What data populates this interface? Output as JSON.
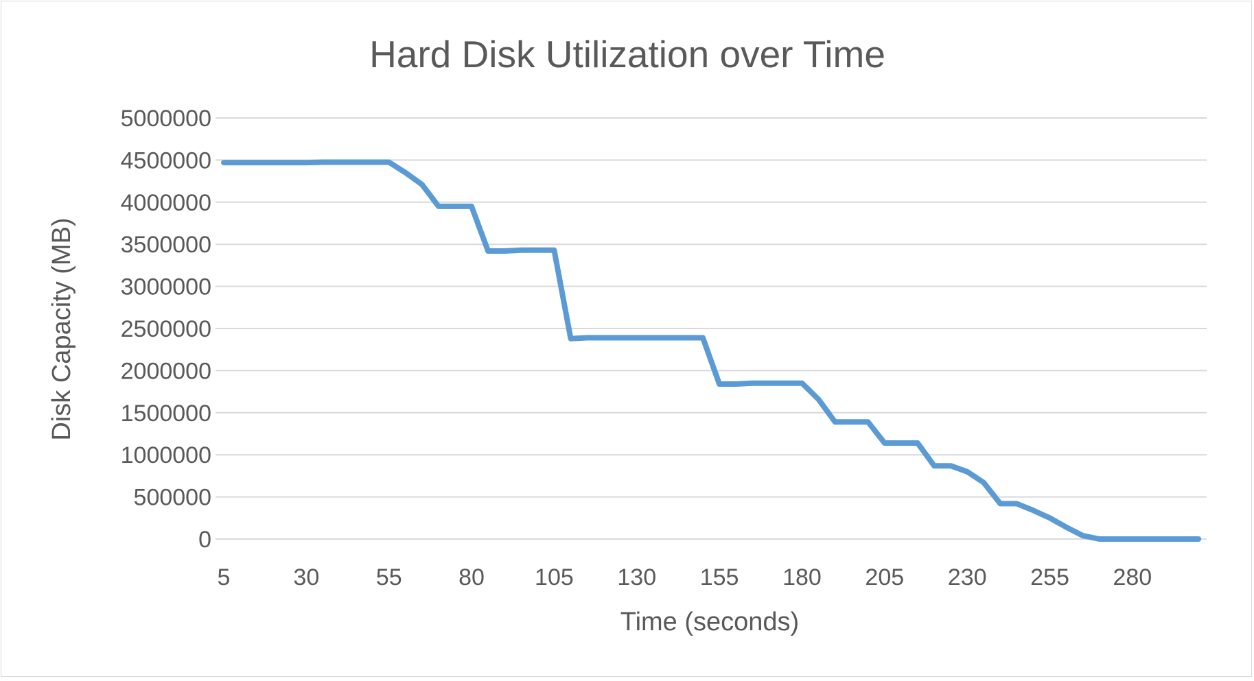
{
  "chart_data": {
    "type": "line",
    "title": "Hard Disk Utilization over Time",
    "xlabel": "Time (seconds)",
    "ylabel": "Disk Capacity (MB)",
    "x_tick_labels": [
      "5",
      "30",
      "55",
      "80",
      "105",
      "130",
      "155",
      "180",
      "205",
      "230",
      "255",
      "280"
    ],
    "y_tick_labels": [
      "0",
      "500000",
      "1000000",
      "1500000",
      "2000000",
      "2500000",
      "3000000",
      "3500000",
      "4000000",
      "4500000",
      "5000000"
    ],
    "ylim": [
      0,
      5000000
    ],
    "xlim": [
      5,
      300
    ],
    "grid": "horizontal",
    "legend": "none",
    "series_color": "#5B9BD5",
    "series": [
      {
        "x": [
          5,
          10,
          15,
          20,
          25,
          30,
          35,
          40,
          45,
          50,
          55,
          60,
          65,
          70,
          75,
          80,
          85,
          90,
          95,
          100,
          105,
          110,
          115,
          120,
          125,
          130,
          135,
          140,
          145,
          150,
          155,
          160,
          165,
          170,
          175,
          180,
          185,
          190,
          195,
          200,
          205,
          210,
          215,
          220,
          225,
          230,
          235,
          240,
          245,
          250,
          255,
          260,
          265,
          270,
          275,
          280,
          285,
          290,
          295,
          300
        ],
        "values": [
          4470000,
          4470000,
          4470000,
          4470000,
          4470000,
          4470000,
          4475000,
          4475000,
          4475000,
          4475000,
          4475000,
          4350000,
          4210000,
          3950000,
          3950000,
          3950000,
          3420000,
          3420000,
          3430000,
          3430000,
          3430000,
          2380000,
          2390000,
          2390000,
          2390000,
          2390000,
          2390000,
          2390000,
          2390000,
          2390000,
          1840000,
          1840000,
          1850000,
          1850000,
          1850000,
          1850000,
          1660000,
          1390000,
          1390000,
          1390000,
          1140000,
          1140000,
          1140000,
          870000,
          870000,
          800000,
          670000,
          420000,
          420000,
          340000,
          250000,
          140000,
          40000,
          0,
          0,
          0,
          0,
          0,
          0,
          0
        ]
      }
    ]
  }
}
